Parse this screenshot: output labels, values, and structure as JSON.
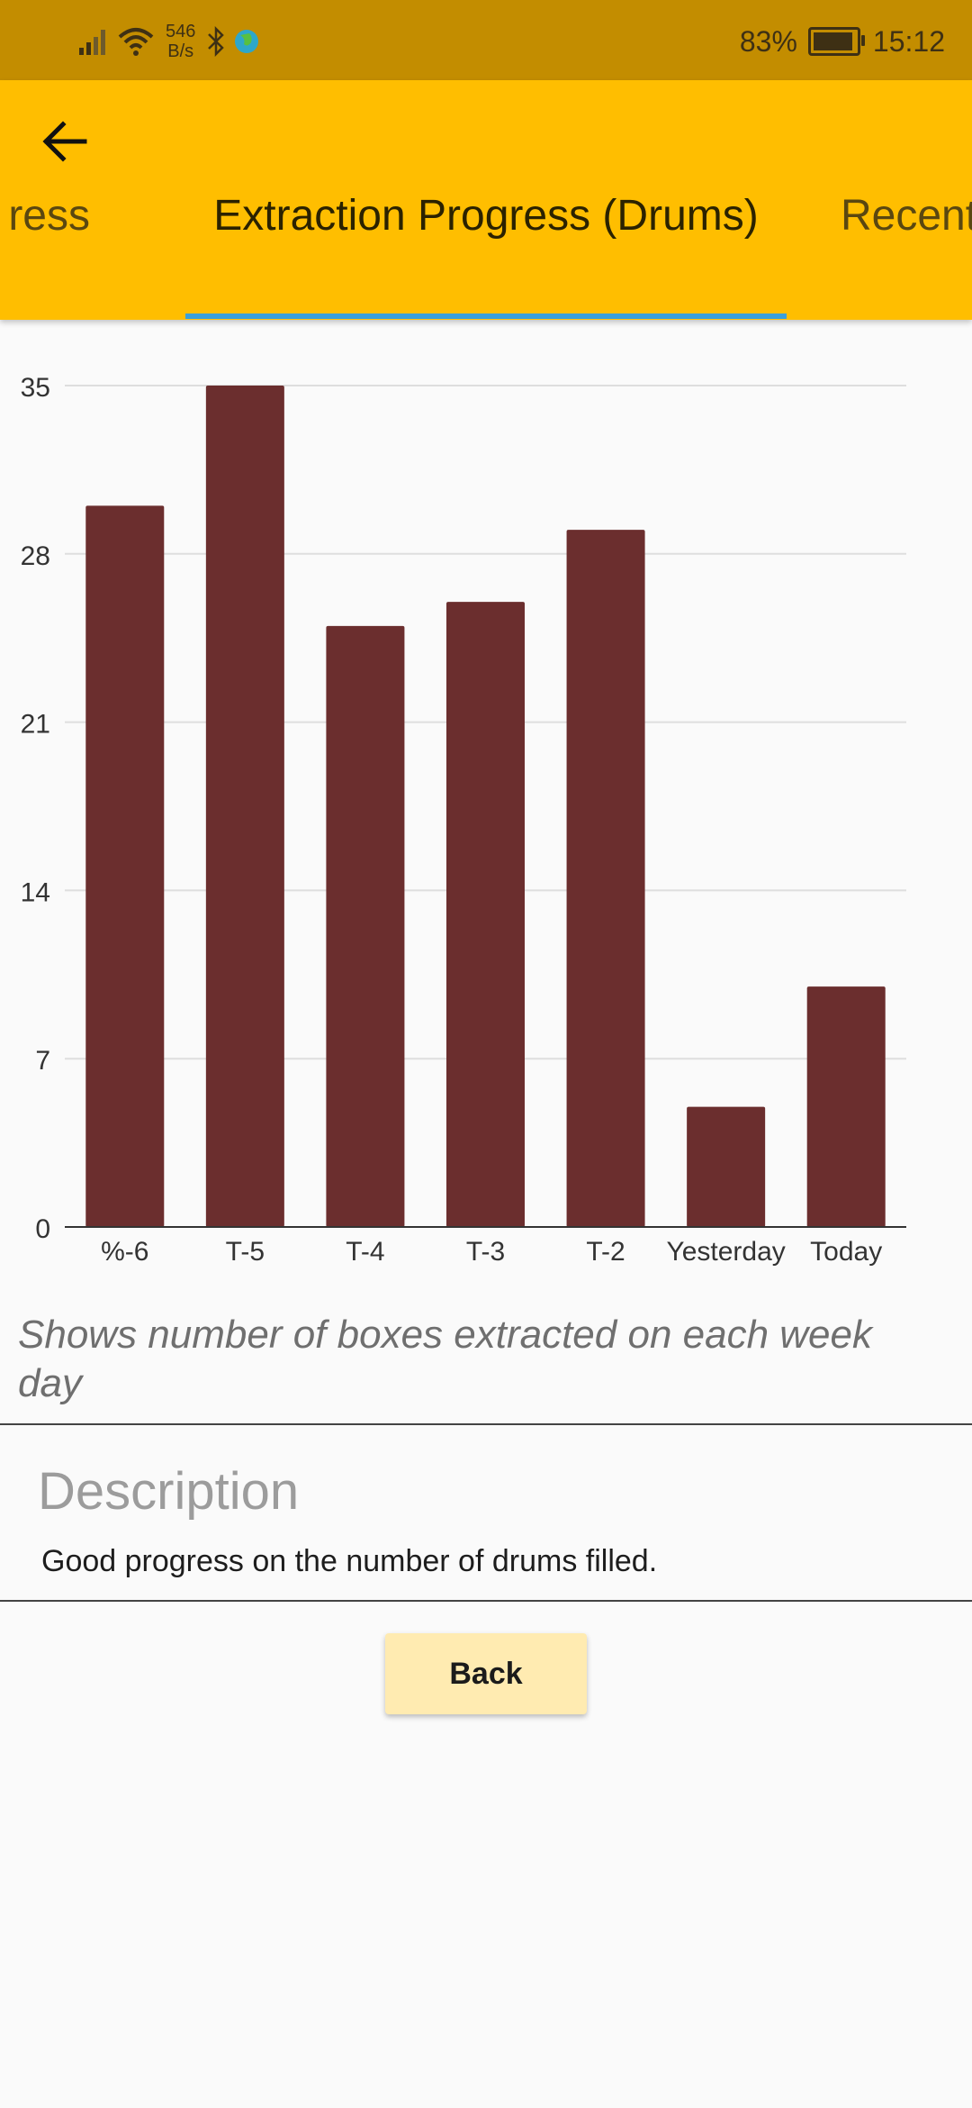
{
  "status_bar": {
    "speed_value": "546",
    "speed_unit": "B/s",
    "battery": "83%",
    "time": "15:12"
  },
  "app_bar": {
    "tabs": [
      {
        "label": "ress"
      },
      {
        "label": "Extraction Progress (Drums)"
      },
      {
        "label": "Recent C"
      }
    ],
    "active_tab": 1
  },
  "chart_data": {
    "type": "bar",
    "categories": [
      "%-6",
      "T-5",
      "T-4",
      "T-3",
      "T-2",
      "Yesterday",
      "Today"
    ],
    "values": [
      30,
      35,
      25,
      26,
      29,
      5,
      10
    ],
    "ylim": [
      0,
      35
    ],
    "yticks": [
      0,
      7,
      14,
      21,
      28,
      35
    ],
    "grid": true,
    "bar_color": "#6b2e2e"
  },
  "caption": "Shows number of boxes extracted on each week day",
  "description": {
    "title": "Description",
    "text": "Good progress on the number of drums filled."
  },
  "back_button": "Back",
  "colors": {
    "status_bar": "#c38d00",
    "app_bar": "#ffbe00",
    "tab_indicator": "#3aa0da",
    "button": "#ffebb1"
  }
}
